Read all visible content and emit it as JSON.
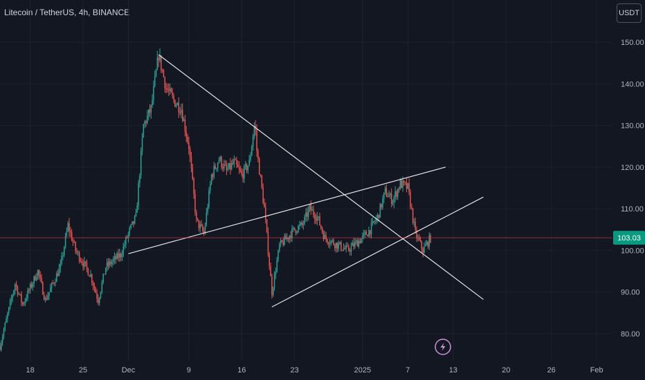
{
  "header": {
    "title": "Litecoin / TetherUS, 4h, BINANCE",
    "currency": "USDT"
  },
  "colors": {
    "background": "#131722",
    "grid": "#1e222d",
    "up": "#26a69a",
    "down": "#ef5350",
    "price_line": "#f23645",
    "price_tag": "#089981",
    "trendline": "#e6e6e6",
    "event_icon": "#ce93d8"
  },
  "event_icon": "lightning-bolt-icon",
  "chart_data": {
    "type": "candlestick",
    "title": "Litecoin / TetherUS, 4h, BINANCE",
    "ylim": [
      73.5,
      153.5
    ],
    "y_ticks": [
      150,
      140,
      130,
      120,
      110,
      100,
      90,
      80
    ],
    "y_tick_labels": [
      "150.00",
      "140.00",
      "130.00",
      "120.00",
      "110.00",
      "100.00",
      "90.00",
      "80.00"
    ],
    "x_start": "2024-11-14",
    "x_end": "2025-02-03",
    "x_ticks": [
      "2024-11-18",
      "2024-11-25",
      "2024-12-01",
      "2024-12-09",
      "2024-12-16",
      "2024-12-23",
      "2025-01-01",
      "2025-01-07",
      "2025-01-13",
      "2025-01-20",
      "2025-01-26",
      "2025-02-01"
    ],
    "x_tick_labels": [
      "18",
      "25",
      "Dec",
      "9",
      "16",
      "23",
      "2025",
      "7",
      "13",
      "20",
      "26",
      "Feb"
    ],
    "last_price": 103.03,
    "last_price_label": "103.03",
    "grid": true,
    "price_path": [
      [
        "2024-11-14",
        77
      ],
      [
        "2024-11-16",
        92
      ],
      [
        "2024-11-17",
        87
      ],
      [
        "2024-11-19",
        95
      ],
      [
        "2024-11-20",
        88
      ],
      [
        "2024-11-22",
        96
      ],
      [
        "2024-11-23",
        106
      ],
      [
        "2024-11-24",
        100
      ],
      [
        "2024-11-26",
        94
      ],
      [
        "2024-11-27",
        88
      ],
      [
        "2024-11-28",
        96
      ],
      [
        "2024-11-30",
        99
      ],
      [
        "2024-12-01",
        104
      ],
      [
        "2024-12-02",
        108
      ],
      [
        "2024-12-03",
        130
      ],
      [
        "2024-12-04",
        134
      ],
      [
        "2024-12-05",
        147
      ],
      [
        "2024-12-06",
        139
      ],
      [
        "2024-12-07",
        136
      ],
      [
        "2024-12-08",
        134
      ],
      [
        "2024-12-09",
        125
      ],
      [
        "2024-12-10",
        107
      ],
      [
        "2024-12-11",
        104
      ],
      [
        "2024-12-12",
        118
      ],
      [
        "2024-12-13",
        122
      ],
      [
        "2024-12-14",
        119
      ],
      [
        "2024-12-15",
        121
      ],
      [
        "2024-12-16",
        118
      ],
      [
        "2024-12-17",
        121
      ],
      [
        "2024-12-17T18",
        131
      ],
      [
        "2024-12-18",
        124
      ],
      [
        "2024-12-19",
        110
      ],
      [
        "2024-12-20",
        90
      ],
      [
        "2024-12-21",
        101
      ],
      [
        "2024-12-22",
        103
      ],
      [
        "2024-12-23",
        105
      ],
      [
        "2024-12-24",
        106
      ],
      [
        "2024-12-25",
        110
      ],
      [
        "2024-12-26",
        108
      ],
      [
        "2024-12-27",
        103
      ],
      [
        "2024-12-29",
        101
      ],
      [
        "2024-12-30",
        100
      ],
      [
        "2025-01-01",
        103
      ],
      [
        "2025-01-02",
        105
      ],
      [
        "2025-01-03",
        108
      ],
      [
        "2025-01-04",
        114
      ],
      [
        "2025-01-05",
        112
      ],
      [
        "2025-01-06",
        116
      ],
      [
        "2025-01-07",
        115
      ],
      [
        "2025-01-08",
        104
      ],
      [
        "2025-01-09",
        100
      ],
      [
        "2025-01-10",
        103
      ]
    ],
    "trendlines": [
      {
        "from": [
          "2024-12-05",
          147
        ],
        "to": [
          "2025-01-17",
          88.2
        ]
      },
      {
        "from": [
          "2024-12-01",
          99.2
        ],
        "to": [
          "2025-01-12",
          120
        ]
      },
      {
        "from": [
          "2024-12-20",
          86.4
        ],
        "to": [
          "2025-01-17",
          112.8
        ]
      }
    ]
  }
}
